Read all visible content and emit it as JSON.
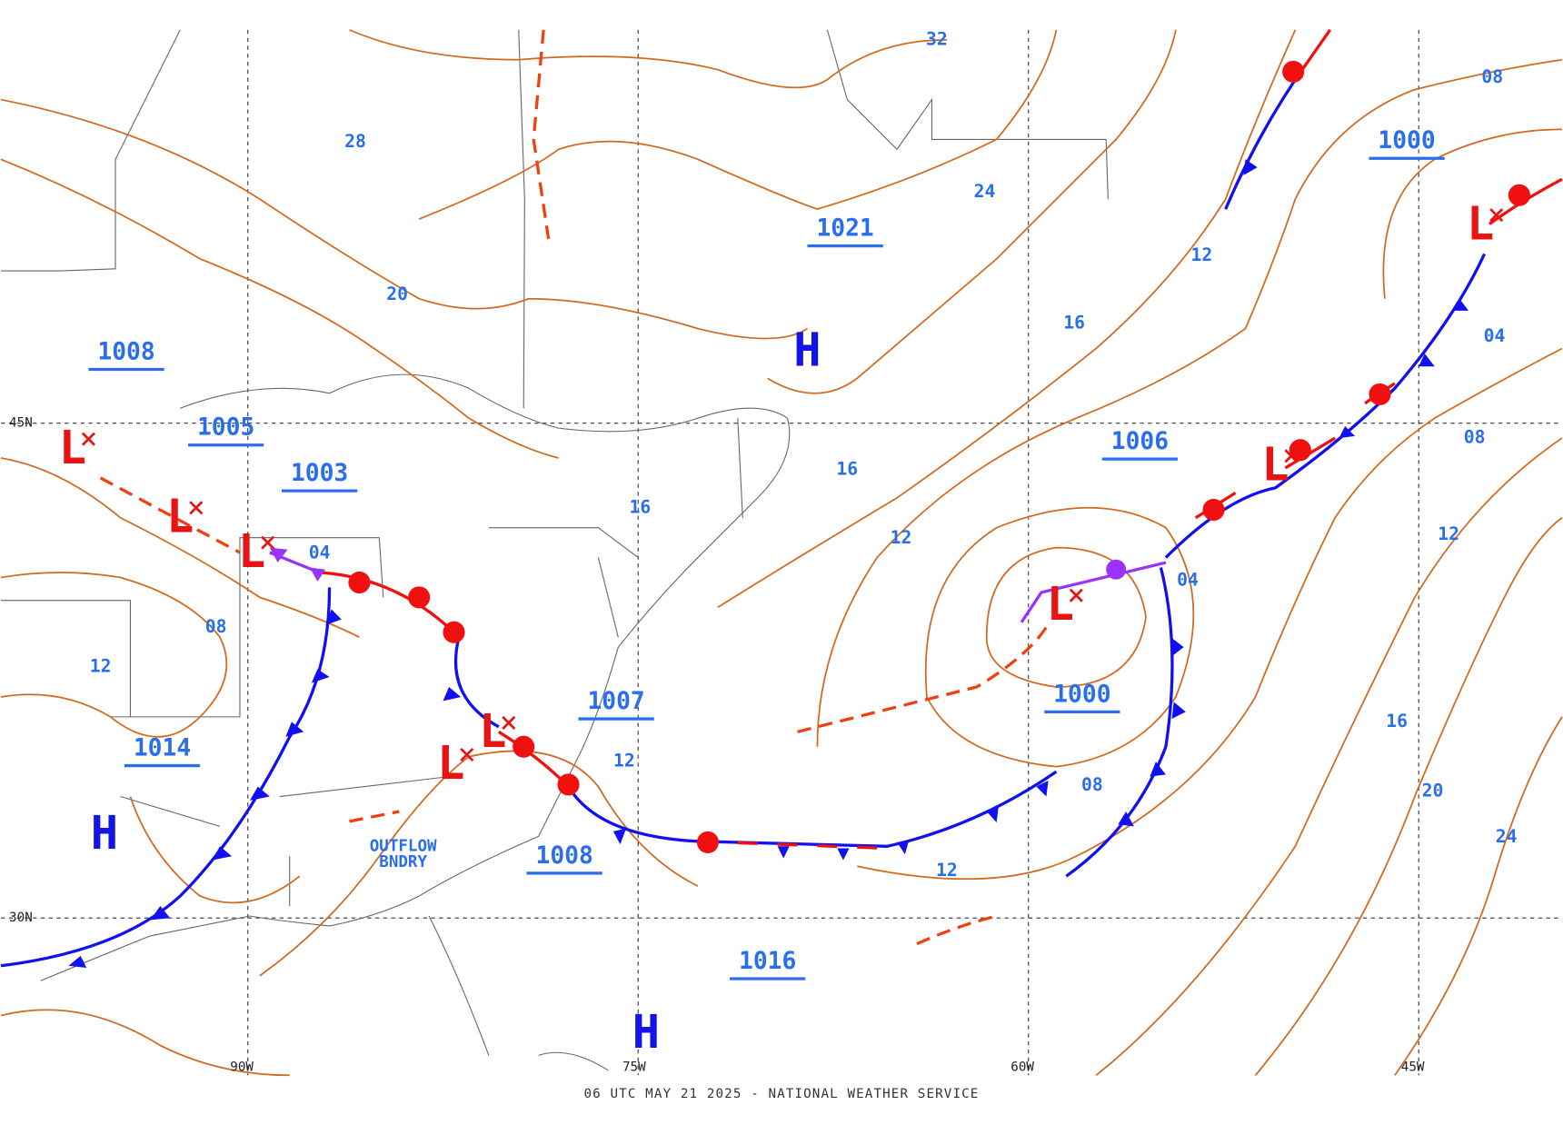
{
  "footer": "06 UTC MAY 21 2025 - NATIONAL WEATHER SERVICE",
  "pressure_centers": [
    "H",
    "H",
    "H",
    "L",
    "L",
    "L",
    "L",
    "L",
    "L",
    "L",
    "L"
  ],
  "isobar_labels": [
    "1000",
    "1021",
    "1008",
    "1005",
    "1003",
    "1006",
    "1000",
    "1007",
    "1014",
    "1008",
    "1016",
    "32",
    "28",
    "24",
    "20",
    "16",
    "16",
    "16",
    "12",
    "12",
    "12",
    "12",
    "12",
    "12",
    "08",
    "08",
    "08",
    "08",
    "04",
    "04",
    "04",
    "16",
    "20",
    "24"
  ],
  "latitude_labels": [
    "45N",
    "30N"
  ],
  "longitude_labels": [
    "90W",
    "75W",
    "60W",
    "45W"
  ],
  "annotations": [
    "OUTFLOW",
    "BNDRY"
  ]
}
